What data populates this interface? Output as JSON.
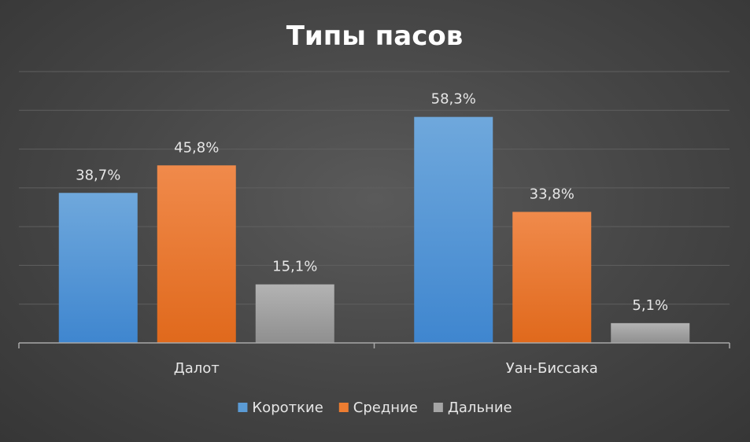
{
  "chart_data": {
    "type": "bar",
    "title": "Типы пасов",
    "categories": [
      "Далот",
      "Уан-Биссака"
    ],
    "series": [
      {
        "name": "Короткие",
        "values": [
          38.7,
          58.3
        ],
        "labels": [
          "38,7%",
          "58,3%"
        ],
        "color": "#5b9bd5"
      },
      {
        "name": "Средние",
        "values": [
          45.8,
          33.8
        ],
        "labels": [
          "45,8%",
          "33,8%"
        ],
        "color": "#ed7d31"
      },
      {
        "name": "Дальние",
        "values": [
          15.1,
          5.1
        ],
        "labels": [
          "15,1%",
          "5,1%"
        ],
        "color": "#a5a5a5"
      }
    ],
    "ylim": [
      0,
      70
    ],
    "grid": true,
    "legend_position": "bottom"
  }
}
